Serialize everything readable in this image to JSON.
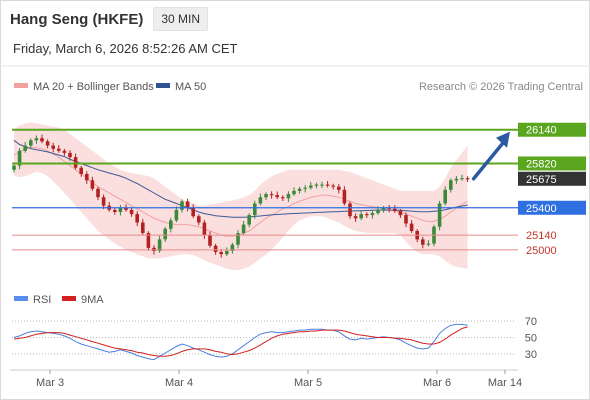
{
  "header": {
    "instrument": "Hang Seng (HKFE)",
    "timeframe": "30 MIN",
    "datetime": "Friday, March 6, 2026 8:52:26 AM CET"
  },
  "legend": {
    "ma20_bb": "MA 20 + Bollinger Bands",
    "ma50": "MA 50",
    "rsi": "RSI",
    "ma9": "9MA"
  },
  "copyright": "Research © 2026 Trading Central",
  "colors": {
    "bull": "#3a8a3a",
    "bear": "#b22222",
    "resistance": "#5aa61e",
    "support": "#2f6fe0",
    "target": "#e58b8b",
    "bollinger_fill": "#fbdada",
    "ma20": "#f0a0a0",
    "ma50": "#3a5a9a",
    "arrow": "#2c5aa0",
    "rsi": "#4a7fe0",
    "rsi_ma": "#d32020"
  },
  "chart_data": [
    {
      "type": "candlestick",
      "x_ticks": [
        "Mar 3",
        "Mar 4",
        "Mar 5",
        "Mar 6",
        "Mar 14"
      ],
      "ylim": [
        24620,
        26460
      ],
      "last_price": 25675,
      "levels": [
        {
          "value": 26140,
          "label": "26140",
          "kind": "resistance"
        },
        {
          "value": 25820,
          "label": "25820",
          "kind": "resistance"
        },
        {
          "value": 25675,
          "label": "25675",
          "kind": "last"
        },
        {
          "value": 25400,
          "label": "25400",
          "kind": "support"
        },
        {
          "value": 25140,
          "label": "25140",
          "kind": "target"
        },
        {
          "value": 25000,
          "label": "25000",
          "kind": "target"
        }
      ],
      "arrow": {
        "from_value": 25675,
        "to_value": 26140
      },
      "closes": [
        25800,
        25940,
        25990,
        26040,
        26060,
        26030,
        25990,
        25960,
        25940,
        25920,
        25880,
        25780,
        25720,
        25660,
        25580,
        25500,
        25420,
        25380,
        25360,
        25400,
        25380,
        25340,
        25260,
        25160,
        25020,
        24990,
        25100,
        25200,
        25280,
        25380,
        25460,
        25400,
        25320,
        25260,
        25140,
        25040,
        24980,
        24960,
        24990,
        25050,
        25160,
        25240,
        25330,
        25440,
        25500,
        25530,
        25520,
        25500,
        25490,
        25530,
        25560,
        25580,
        25590,
        25610,
        25620,
        25620,
        25610,
        25600,
        25570,
        25440,
        25320,
        25300,
        25340,
        25330,
        25350,
        25380,
        25400,
        25390,
        25370,
        25330,
        25250,
        25180,
        25100,
        25050,
        25060,
        25220,
        25440,
        25570,
        25660,
        25675,
        25680,
        25670
      ],
      "ma20": [
        25900,
        25930,
        25960,
        25970,
        25970,
        25960,
        25940,
        25910,
        25880,
        25840,
        25800,
        25760,
        25720,
        25680,
        25640,
        25600,
        25570,
        25540,
        25510,
        25480,
        25450,
        25420,
        25390,
        25360,
        25330,
        25300,
        25280,
        25260,
        25250,
        25240,
        25240,
        25240,
        25230,
        25220,
        25200,
        25180,
        25160,
        25140,
        25130,
        25130,
        25140,
        25160,
        25180,
        25220,
        25260,
        25300,
        25330,
        25360,
        25390,
        25410,
        25440,
        25460,
        25480,
        25500,
        25510,
        25520,
        25520,
        25510,
        25500,
        25480,
        25460,
        25440,
        25430,
        25420,
        25410,
        25400,
        25390,
        25380,
        25370,
        25360,
        25340,
        25320,
        25300,
        25280,
        25270,
        25270,
        25290,
        25320,
        25360,
        25400,
        25430,
        25460
      ],
      "ma50": [
        26040,
        26000,
        25980,
        25960,
        25950,
        25940,
        25930,
        25915,
        25900,
        25885,
        25860,
        25840,
        25820,
        25800,
        25780,
        25760,
        25745,
        25730,
        25715,
        25700,
        25680,
        25655,
        25630,
        25600,
        25570,
        25540,
        25510,
        25480,
        25460,
        25440,
        25420,
        25400,
        25380,
        25360,
        25345,
        25335,
        25325,
        25320,
        25315,
        25310,
        25310,
        25310,
        25312,
        25318,
        25322,
        25328,
        25332,
        25336,
        25340,
        25343,
        25346,
        25348,
        25350,
        25352,
        25356,
        25358,
        25360,
        25362,
        25364,
        25366,
        25368,
        25370,
        25372,
        25374,
        25376,
        25378,
        25378,
        25378,
        25378,
        25376,
        25372,
        25368,
        25364,
        25362,
        25362,
        25366,
        25372,
        25382,
        25394,
        25406,
        25416,
        25426
      ],
      "bb_upper": [
        26140,
        26180,
        26200,
        26210,
        26200,
        26190,
        26180,
        26170,
        26160,
        26140,
        26100,
        26060,
        26020,
        25980,
        25940,
        25900,
        25860,
        25820,
        25790,
        25760,
        25740,
        25730,
        25720,
        25710,
        25700,
        25680,
        25640,
        25600,
        25560,
        25520,
        25480,
        25460,
        25440,
        25420,
        25420,
        25430,
        25440,
        25450,
        25460,
        25470,
        25480,
        25500,
        25520,
        25560,
        25620,
        25660,
        25700,
        25720,
        25740,
        25760,
        25760,
        25760,
        25760,
        25760,
        25760,
        25760,
        25760,
        25760,
        25760,
        25750,
        25740,
        25720,
        25700,
        25680,
        25660,
        25640,
        25620,
        25600,
        25580,
        25560,
        25560,
        25560,
        25560,
        25560,
        25560,
        25560,
        25600,
        25680,
        25780,
        25850,
        25920,
        25990
      ],
      "bb_lower": [
        25700,
        25690,
        25700,
        25720,
        25740,
        25730,
        25700,
        25650,
        25600,
        25540,
        25480,
        25420,
        25360,
        25300,
        25240,
        25180,
        25140,
        25100,
        25060,
        25030,
        25000,
        24980,
        24960,
        24940,
        24920,
        24920,
        24920,
        24930,
        24940,
        24950,
        24960,
        24960,
        24950,
        24930,
        24900,
        24880,
        24860,
        24840,
        24820,
        24810,
        24810,
        24820,
        24840,
        24880,
        24920,
        24960,
        25000,
        25060,
        25120,
        25180,
        25240,
        25280,
        25300,
        25320,
        25320,
        25320,
        25300,
        25280,
        25260,
        25230,
        25200,
        25180,
        25170,
        25160,
        25160,
        25160,
        25160,
        25160,
        25160,
        25140,
        25080,
        25020,
        24980,
        24960,
        24960,
        24960,
        24940,
        24900,
        24860,
        24840,
        24830,
        24820
      ]
    },
    {
      "type": "line",
      "name": "RSI",
      "ylim": [
        20,
        80
      ],
      "y_ticks": [
        70,
        50,
        30
      ],
      "rsi": [
        50,
        52,
        55,
        57,
        58,
        57,
        56,
        55,
        54,
        52,
        49,
        45,
        42,
        40,
        38,
        36,
        34,
        32,
        33,
        35,
        33,
        31,
        28,
        26,
        24,
        23,
        27,
        31,
        35,
        39,
        42,
        40,
        37,
        35,
        32,
        29,
        27,
        26,
        27,
        30,
        35,
        40,
        45,
        50,
        54,
        56,
        57,
        56,
        56,
        57,
        58,
        59,
        59,
        60,
        60,
        60,
        59,
        59,
        57,
        52,
        48,
        47,
        49,
        48,
        49,
        50,
        51,
        50,
        49,
        47,
        43,
        40,
        37,
        36,
        37,
        45,
        55,
        61,
        65,
        66,
        66,
        65
      ],
      "rsi_ma": [
        48,
        49,
        50,
        52,
        54,
        55,
        56,
        56,
        56,
        55,
        53,
        51,
        49,
        47,
        45,
        43,
        41,
        39,
        37,
        36,
        35,
        34,
        32,
        31,
        29,
        28,
        27,
        27,
        28,
        30,
        33,
        35,
        36,
        36,
        36,
        35,
        33,
        32,
        30,
        29,
        30,
        32,
        34,
        37,
        41,
        45,
        49,
        52,
        54,
        55,
        56,
        57,
        57,
        58,
        58,
        59,
        59,
        59,
        59,
        58,
        56,
        54,
        53,
        52,
        51,
        50,
        50,
        50,
        49,
        49,
        48,
        47,
        45,
        43,
        42,
        42,
        44,
        48,
        53,
        57,
        61,
        63
      ]
    }
  ]
}
